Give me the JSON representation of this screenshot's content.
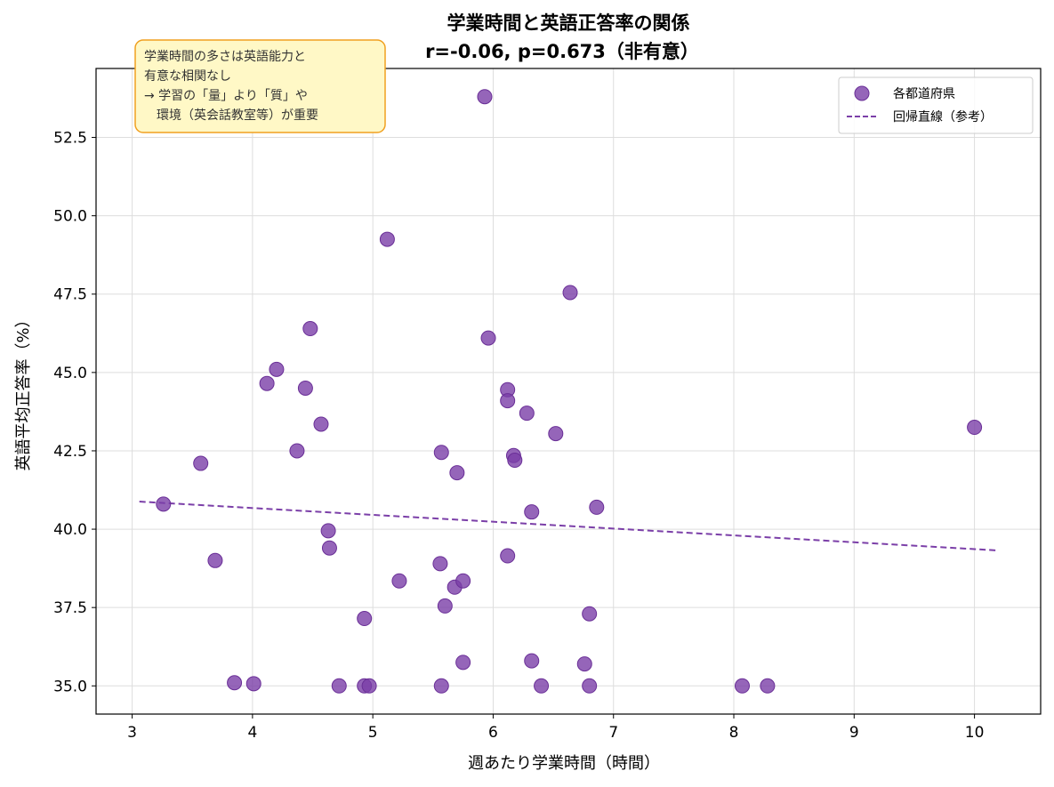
{
  "chart_data": {
    "type": "scatter",
    "title": "学業時間と英語正答率の関係",
    "subtitle": "r=-0.06, p=0.673（非有意）",
    "xlabel": "週あたり学業時間（時間）",
    "ylabel": "英語平均正答率（%）",
    "xlim": [
      2.7,
      10.55
    ],
    "ylim": [
      34.1,
      54.7
    ],
    "xticks": [
      "3",
      "4",
      "5",
      "6",
      "7",
      "8",
      "9",
      "10"
    ],
    "yticks": [
      "35.0",
      "37.5",
      "40.0",
      "42.5",
      "45.0",
      "47.5",
      "50.0",
      "52.5"
    ],
    "grid": true,
    "legend_position": "top-right",
    "series": [
      {
        "name": "各都道府県",
        "color": "#7b3fa8",
        "points": [
          {
            "x": 3.26,
            "y": 40.8
          },
          {
            "x": 3.57,
            "y": 42.1
          },
          {
            "x": 3.69,
            "y": 39.0
          },
          {
            "x": 3.85,
            "y": 35.1
          },
          {
            "x": 4.01,
            "y": 35.07
          },
          {
            "x": 4.12,
            "y": 44.65
          },
          {
            "x": 4.2,
            "y": 45.1
          },
          {
            "x": 4.37,
            "y": 42.5
          },
          {
            "x": 4.44,
            "y": 44.5
          },
          {
            "x": 4.48,
            "y": 46.4
          },
          {
            "x": 4.57,
            "y": 43.35
          },
          {
            "x": 4.63,
            "y": 39.95
          },
          {
            "x": 4.64,
            "y": 39.4
          },
          {
            "x": 4.72,
            "y": 35.0
          },
          {
            "x": 4.93,
            "y": 35.0
          },
          {
            "x": 4.93,
            "y": 37.15
          },
          {
            "x": 4.97,
            "y": 35.0
          },
          {
            "x": 5.12,
            "y": 49.25
          },
          {
            "x": 5.22,
            "y": 38.35
          },
          {
            "x": 5.56,
            "y": 38.9
          },
          {
            "x": 5.57,
            "y": 35.0
          },
          {
            "x": 5.57,
            "y": 42.45
          },
          {
            "x": 5.6,
            "y": 37.55
          },
          {
            "x": 5.68,
            "y": 38.15
          },
          {
            "x": 5.7,
            "y": 41.8
          },
          {
            "x": 5.75,
            "y": 38.35
          },
          {
            "x": 5.75,
            "y": 35.75
          },
          {
            "x": 5.93,
            "y": 53.8
          },
          {
            "x": 5.96,
            "y": 46.1
          },
          {
            "x": 6.12,
            "y": 44.45
          },
          {
            "x": 6.12,
            "y": 44.1
          },
          {
            "x": 6.12,
            "y": 39.15
          },
          {
            "x": 6.17,
            "y": 42.35
          },
          {
            "x": 6.18,
            "y": 42.2
          },
          {
            "x": 6.28,
            "y": 43.7
          },
          {
            "x": 6.32,
            "y": 40.55
          },
          {
            "x": 6.32,
            "y": 35.8
          },
          {
            "x": 6.4,
            "y": 35.0
          },
          {
            "x": 6.52,
            "y": 43.05
          },
          {
            "x": 6.64,
            "y": 47.55
          },
          {
            "x": 6.76,
            "y": 35.7
          },
          {
            "x": 6.8,
            "y": 37.3
          },
          {
            "x": 6.8,
            "y": 35.0
          },
          {
            "x": 6.86,
            "y": 40.7
          },
          {
            "x": 8.07,
            "y": 35.0
          },
          {
            "x": 8.28,
            "y": 35.0
          },
          {
            "x": 10.0,
            "y": 43.25
          }
        ]
      },
      {
        "name": "回帰直線（参考）",
        "type": "line",
        "style": "dashed",
        "color": "#7b3fa8",
        "x": [
          3.06,
          10.2
        ],
        "y": [
          40.88,
          39.32
        ]
      }
    ],
    "annotation": {
      "lines": [
        "学業時間の多さは英語能力と",
        "有意な相関なし",
        "→ 学習の「量」より「質」や",
        "　環境（英会話教室等）が重要"
      ],
      "background": "#fff8c6",
      "border": "#f0a020"
    }
  }
}
